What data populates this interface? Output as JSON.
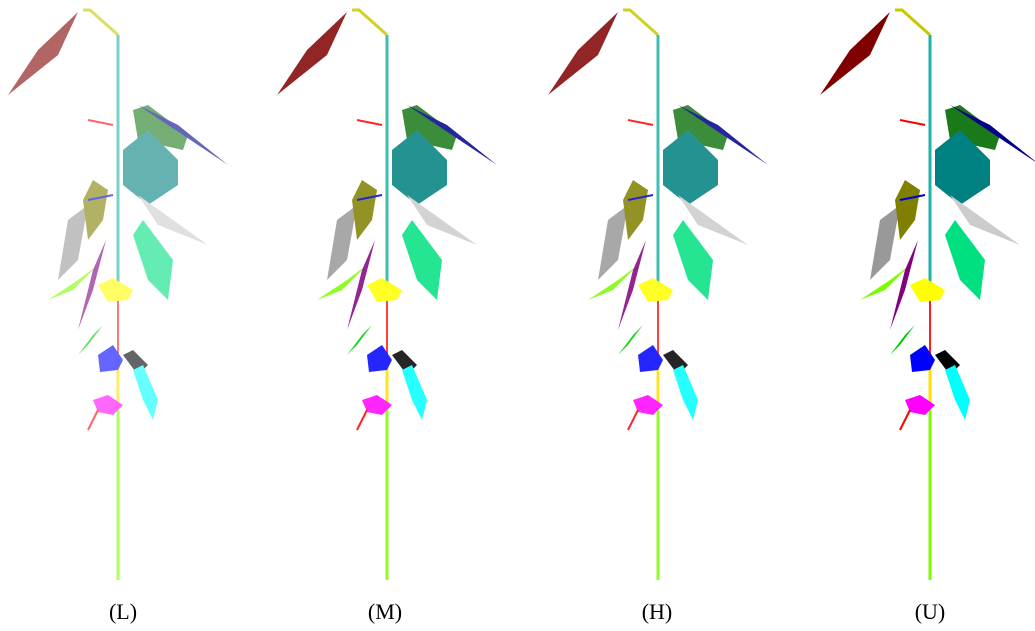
{
  "panels": [
    {
      "label": "(L)"
    },
    {
      "label": "(M)"
    },
    {
      "label": "(H)"
    },
    {
      "label": "(U)"
    }
  ]
}
